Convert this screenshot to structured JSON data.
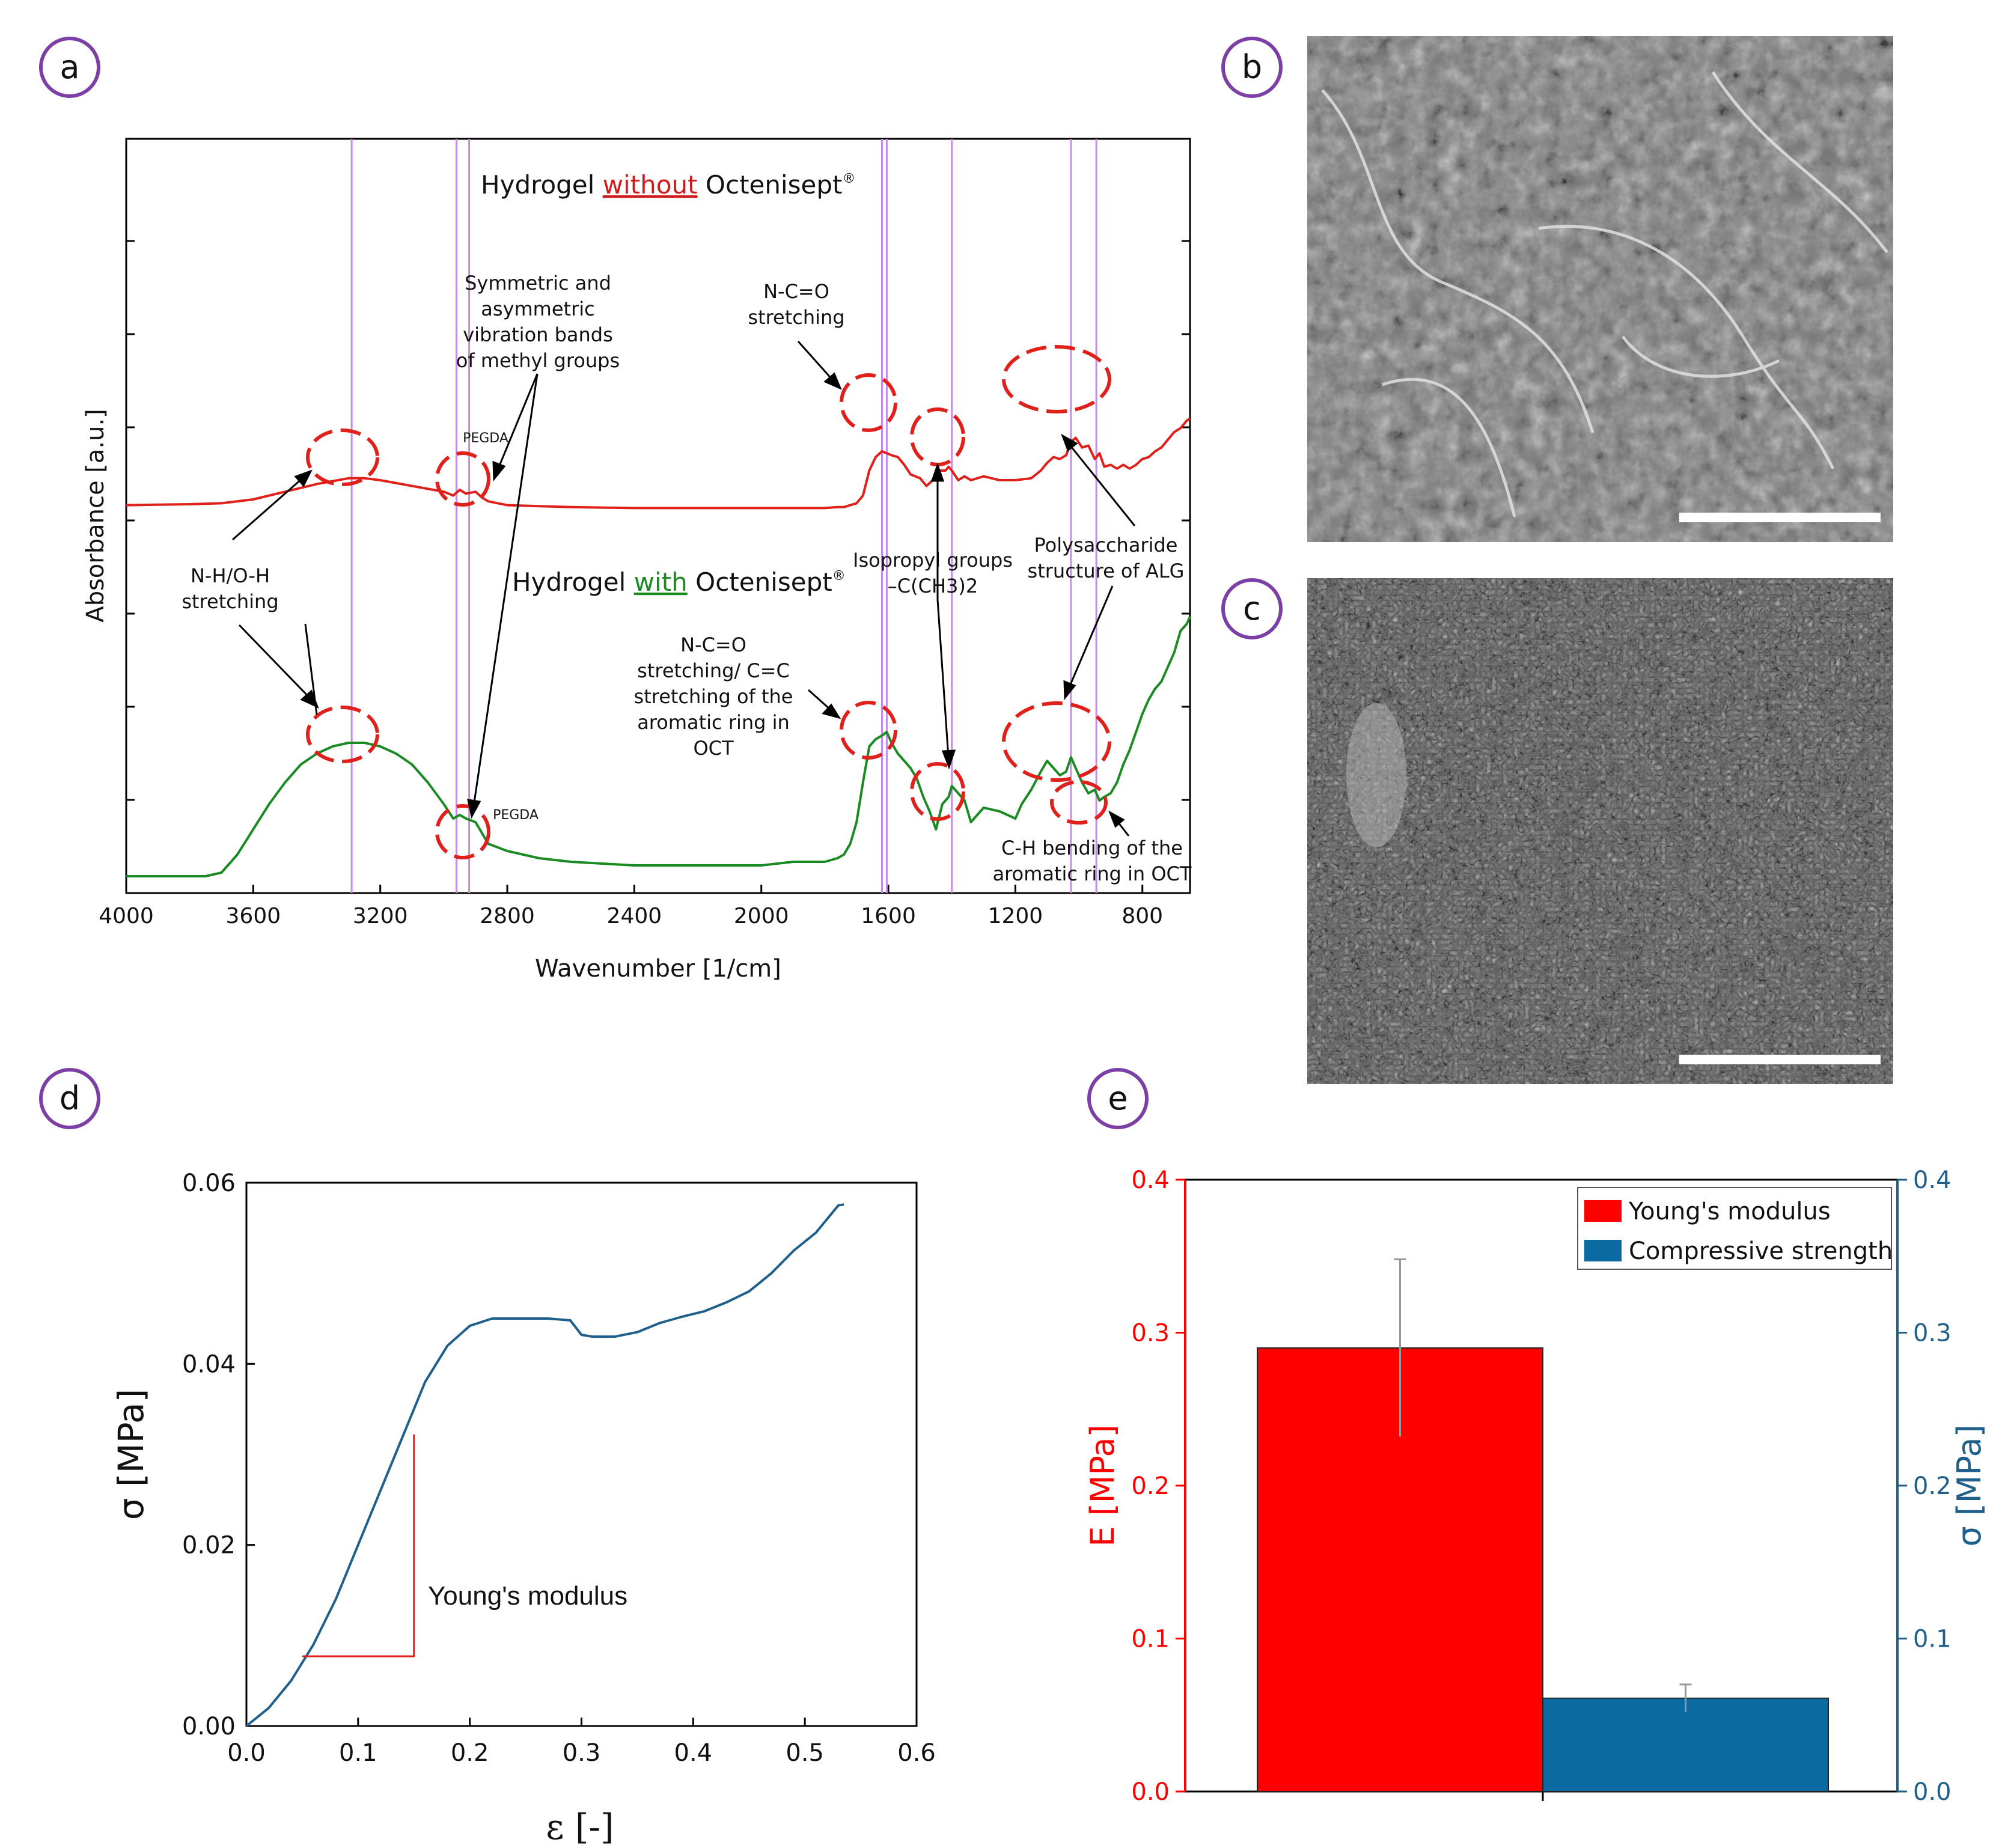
{
  "panels": {
    "a": {
      "badge": "a",
      "chart_data": {
        "type": "line",
        "xlabel": "Wavenumber [1/cm]",
        "ylabel": "Absorbance [a.u.]",
        "xlim": [
          4000,
          650
        ],
        "x_ticks": [
          4000,
          3600,
          3200,
          2800,
          2400,
          2000,
          1600,
          1200,
          800
        ],
        "marker_lines": [
          3290,
          2960,
          2920,
          1620,
          1605,
          1400,
          1025,
          945
        ],
        "series": [
          {
            "name": "Hydrogel without Octenisept",
            "color": "#e0201b",
            "x": [
              4000,
              3800,
              3700,
              3600,
              3500,
              3400,
              3300,
              3250,
              3200,
              3100,
              3000,
              2970,
              2950,
              2930,
              2900,
              2880,
              2860,
              2800,
              2600,
              2400,
              2200,
              2000,
              1800,
              1760,
              1740,
              1720,
              1700,
              1680,
              1660,
              1640,
              1620,
              1605,
              1590,
              1570,
              1550,
              1530,
              1500,
              1480,
              1460,
              1440,
              1420,
              1410,
              1400,
              1380,
              1360,
              1340,
              1300,
              1250,
              1200,
              1150,
              1120,
              1100,
              1080,
              1060,
              1040,
              1025,
              1010,
              990,
              970,
              950,
              935,
              920,
              900,
              880,
              860,
              840,
              820,
              800,
              780,
              760,
              740,
              720,
              700,
              680,
              660,
              650
            ],
            "y": [
              0.42,
              0.425,
              0.43,
              0.45,
              0.49,
              0.53,
              0.56,
              0.56,
              0.55,
              0.52,
              0.49,
              0.47,
              0.5,
              0.48,
              0.49,
              0.46,
              0.44,
              0.42,
              0.41,
              0.405,
              0.405,
              0.405,
              0.405,
              0.41,
              0.41,
              0.42,
              0.43,
              0.47,
              0.6,
              0.67,
              0.7,
              0.69,
              0.68,
              0.67,
              0.63,
              0.58,
              0.56,
              0.52,
              0.55,
              0.6,
              0.6,
              0.62,
              0.6,
              0.55,
              0.57,
              0.55,
              0.57,
              0.55,
              0.55,
              0.56,
              0.6,
              0.64,
              0.67,
              0.66,
              0.68,
              0.75,
              0.77,
              0.72,
              0.73,
              0.66,
              0.69,
              0.62,
              0.63,
              0.61,
              0.63,
              0.61,
              0.63,
              0.66,
              0.67,
              0.7,
              0.72,
              0.76,
              0.8,
              0.82,
              0.86,
              0.87
            ]
          },
          {
            "name": "Hydrogel with Octenisept",
            "color": "#1a8a22",
            "x": [
              4000,
              3900,
              3800,
              3750,
              3700,
              3650,
              3600,
              3550,
              3500,
              3450,
              3400,
              3350,
              3300,
              3280,
              3250,
              3200,
              3150,
              3100,
              3050,
              3000,
              2970,
              2950,
              2930,
              2900,
              2880,
              2860,
              2800,
              2700,
              2600,
              2500,
              2400,
              2300,
              2200,
              2100,
              2000,
              1900,
              1800,
              1760,
              1740,
              1720,
              1700,
              1680,
              1660,
              1640,
              1620,
              1605,
              1590,
              1570,
              1550,
              1530,
              1510,
              1490,
              1470,
              1450,
              1430,
              1410,
              1400,
              1390,
              1380,
              1360,
              1340,
              1300,
              1250,
              1200,
              1180,
              1150,
              1120,
              1100,
              1080,
              1060,
              1040,
              1025,
              1010,
              990,
              970,
              950,
              935,
              920,
              900,
              880,
              860,
              840,
              820,
              800,
              780,
              760,
              740,
              720,
              700,
              680,
              660,
              650
            ],
            "y": [
              0.04,
              0.04,
              0.04,
              0.04,
              0.05,
              0.1,
              0.17,
              0.24,
              0.3,
              0.35,
              0.38,
              0.4,
              0.41,
              0.41,
              0.41,
              0.4,
              0.38,
              0.35,
              0.3,
              0.24,
              0.2,
              0.21,
              0.2,
              0.19,
              0.16,
              0.13,
              0.11,
              0.09,
              0.08,
              0.075,
              0.07,
              0.07,
              0.07,
              0.07,
              0.07,
              0.08,
              0.08,
              0.09,
              0.1,
              0.13,
              0.19,
              0.3,
              0.4,
              0.42,
              0.43,
              0.44,
              0.41,
              0.38,
              0.36,
              0.34,
              0.31,
              0.26,
              0.22,
              0.17,
              0.24,
              0.26,
              0.29,
              0.28,
              0.27,
              0.25,
              0.19,
              0.23,
              0.22,
              0.2,
              0.24,
              0.28,
              0.33,
              0.36,
              0.34,
              0.32,
              0.33,
              0.37,
              0.34,
              0.3,
              0.27,
              0.28,
              0.25,
              0.26,
              0.27,
              0.3,
              0.35,
              0.39,
              0.44,
              0.49,
              0.53,
              0.56,
              0.58,
              0.62,
              0.66,
              0.72,
              0.74,
              0.76
            ]
          }
        ],
        "title_top": {
          "pre": "Hydrogel ",
          "emph": "without",
          "post": " Octenisept",
          "sup": "®"
        },
        "title_bottom": {
          "pre": "Hydrogel ",
          "emph": "with",
          "post": " Octenisept",
          "sup": "®"
        },
        "annotations": {
          "methyl": [
            "Symmetric and",
            "asymmetric",
            "vibration bands",
            "of methyl groups"
          ],
          "nco_top": [
            "N-C=O",
            "stretching"
          ],
          "nh": [
            "N-H/O-H",
            "stretching"
          ],
          "nco_bottom": [
            "N-C=O",
            "stretching/ C=C",
            "stretching of the",
            "aromatic ring in",
            "OCT"
          ],
          "isopropyl": [
            "Isopropyl groups",
            "–C(CH3)2"
          ],
          "polysaccharide": [
            "Polysaccharide",
            "structure of ALG"
          ],
          "ch_bend": [
            "C-H bending of the",
            "aromatic ring in OCT"
          ],
          "pegda": "PEGDA"
        }
      }
    },
    "b": {
      "badge": "b"
    },
    "c": {
      "badge": "c"
    },
    "d": {
      "badge": "d",
      "chart_data": {
        "type": "line",
        "xlabel": "ε [-]",
        "ylabel": "σ [MPa]",
        "xlim": [
          0,
          0.6
        ],
        "ylim": [
          0,
          0.06
        ],
        "x_ticks": [
          "0.0",
          "0.1",
          "0.2",
          "0.3",
          "0.4",
          "0.5",
          "0.6"
        ],
        "y_ticks": [
          "0.00",
          "0.02",
          "0.04",
          "0.06"
        ],
        "series": [
          {
            "name": "stress-strain",
            "color": "#1f5f8b",
            "x": [
              0,
              0.02,
              0.04,
              0.06,
              0.08,
              0.1,
              0.12,
              0.14,
              0.16,
              0.18,
              0.2,
              0.22,
              0.23,
              0.25,
              0.27,
              0.29,
              0.3,
              0.31,
              0.33,
              0.35,
              0.37,
              0.39,
              0.41,
              0.43,
              0.45,
              0.47,
              0.49,
              0.51,
              0.52,
              0.53,
              0.535
            ],
            "y": [
              0,
              0.002,
              0.005,
              0.009,
              0.014,
              0.02,
              0.026,
              0.032,
              0.038,
              0.042,
              0.0442,
              0.045,
              0.045,
              0.045,
              0.045,
              0.0448,
              0.0432,
              0.043,
              0.043,
              0.0435,
              0.0445,
              0.0452,
              0.0458,
              0.0468,
              0.048,
              0.05,
              0.0525,
              0.0545,
              0.056,
              0.0575,
              0.0576
            ]
          }
        ],
        "youngs_triangle": {
          "x": [
            0.05,
            0.15
          ],
          "y": [
            0.0077,
            0.0322
          ]
        },
        "annotation": "Young's modulus"
      }
    },
    "e": {
      "badge": "e",
      "chart_data": {
        "type": "bar",
        "left_axis": {
          "label": "E [MPa]",
          "ylim": [
            0,
            0.4
          ],
          "ticks": [
            "0.0",
            "0.1",
            "0.2",
            "0.3",
            "0.4"
          ],
          "color": "#ff0000"
        },
        "right_axis": {
          "label": "σ [MPa]",
          "ylim": [
            0,
            0.4
          ],
          "ticks": [
            "0.0",
            "0.1",
            "0.2",
            "0.3",
            "0.4"
          ],
          "color": "#1f5f8b"
        },
        "series": [
          {
            "name": "Young's modulus",
            "value": 0.29,
            "error": 0.058,
            "color": "#ff0000",
            "axis": "left"
          },
          {
            "name": "Compressive strength",
            "value": 0.061,
            "error": 0.009,
            "color": "#0a6aa1",
            "axis": "right"
          }
        ],
        "legend_position": "top-right"
      }
    }
  }
}
